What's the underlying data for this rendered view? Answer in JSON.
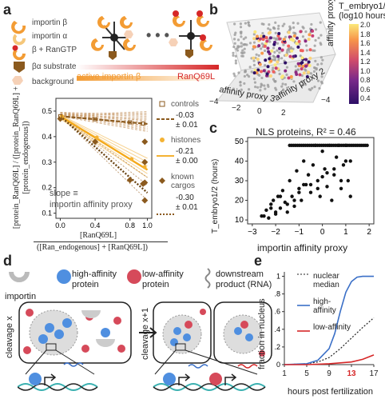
{
  "panels": {
    "a": "a",
    "b": "b",
    "c": "c",
    "d": "d",
    "e": "e"
  },
  "a": {
    "legend": [
      "importin β",
      "importin α",
      "β + RanGTP",
      "βα substrate",
      "background"
    ],
    "dots": "• • •",
    "gradient_left": "active importin β",
    "gradient_right": "RanQ69L",
    "ylabel": "[protein_RanQ69L] / ([protein_RanQ69L] + [protein_endogenous])",
    "ylabel_main": "[protein",
    "xlabel_top": "[RanQ69L]",
    "xlabel_bottom": "([Ran_endogenous] + [RanQ69L])",
    "slope_note_1": "slope ≡",
    "slope_note_2": "importin affinity proxy",
    "series_legend": [
      {
        "name": "controls",
        "slope": "-0.03",
        "err": "± 0.01"
      },
      {
        "name": "histones",
        "slope": "-0.21",
        "err": "± 0.00"
      },
      {
        "name": "known cargos",
        "slope": "-0.30",
        "err": "± 0.01"
      }
    ]
  },
  "b": {
    "colorbar_title": "T_embryo1/2",
    "colorbar_unit": "(log10 hours)",
    "colorbar_ticks": [
      "2.0",
      "1.8",
      "1.6",
      "1.4",
      "1.2",
      "1.0",
      "0.8",
      "0.6",
      "0.4"
    ],
    "axis1": "affinity proxy 1",
    "axis2": "affinity proxy 2",
    "axis3": "affinity proxy 3",
    "ticks_x": [
      "−4",
      "−2",
      "0",
      "2"
    ],
    "ticks_y": [
      "0",
      "2",
      "4"
    ]
  },
  "c": {
    "title": "NLS proteins, R² = 0.46",
    "xlabel": "importin affinity proxy",
    "ylabel": "T_embryo1/2 (hours)"
  },
  "d": {
    "legend": [
      "importin",
      "high-affinity protein",
      "low-affinity protein",
      "downstream product (RNA)"
    ],
    "left_label": "cleavage x",
    "right_label": "cleavage x+1"
  },
  "e": {
    "ylabel": "fraction in nucleus",
    "xlabel": "hours post fertilization",
    "legend": [
      "nuclear median",
      "high-affinity",
      "low-affinity"
    ],
    "highlight_tick": "13"
  },
  "colors": {
    "accent_red": "#d62728",
    "blue": "#3a6fc7",
    "orange": "#f0a020",
    "brown": "#8b5a1e"
  },
  "chart_data": [
    {
      "type": "line",
      "panel": "a",
      "x_ticks": [
        0.0,
        0.4,
        0.8,
        1.0
      ],
      "y_ticks": [
        0.1,
        0.2,
        0.3,
        0.4,
        0.5
      ],
      "xlim": [
        -0.05,
        1.05
      ],
      "ylim": [
        0.08,
        0.55
      ],
      "series": [
        {
          "name": "controls",
          "x": [
            0.0,
            1.0
          ],
          "values": [
            0.48,
            0.45
          ]
        },
        {
          "name": "histones",
          "x": [
            0.0,
            1.0
          ],
          "values": [
            0.48,
            0.27
          ]
        },
        {
          "name": "known cargos",
          "x": [
            0.0,
            1.0
          ],
          "values": [
            0.48,
            0.18
          ]
        }
      ]
    },
    {
      "type": "scatter",
      "panel": "c",
      "title": "NLS proteins, R² = 0.46",
      "xlabel": "importin affinity proxy",
      "ylabel": "T_embryo1/2 (hours)",
      "x_ticks": [
        -3,
        -2,
        -1,
        0,
        1,
        2
      ],
      "y_ticks": [
        10,
        20,
        30,
        40,
        50
      ],
      "xlim": [
        -3.2,
        2.2
      ],
      "ylim": [
        8,
        52
      ],
      "x": [
        -2.6,
        -2.4,
        -2.3,
        -2.2,
        -2.1,
        -2.0,
        -1.9,
        -1.8,
        -1.7,
        -1.6,
        -1.5,
        -1.4,
        -1.3,
        -1.2,
        -1.1,
        -1.0,
        -0.9,
        -0.8,
        -0.7,
        -0.6,
        -0.5,
        -0.4,
        -0.3,
        -0.2,
        -0.1,
        0.0,
        0.1,
        0.2,
        0.3,
        0.4,
        0.5,
        0.6,
        0.7,
        0.8,
        0.9,
        1.0,
        1.1,
        1.2,
        -2.5,
        -2.0,
        -1.5,
        -1.0,
        -0.5,
        0.0,
        0.5,
        1.0,
        -2.2,
        -1.2,
        -0.2,
        0.8,
        -1.8,
        -0.8,
        0.2,
        1.2
      ],
      "values": [
        12,
        15,
        11,
        18,
        20,
        13,
        22,
        16,
        25,
        19,
        14,
        30,
        22,
        17,
        35,
        26,
        20,
        40,
        28,
        33,
        24,
        38,
        48,
        30,
        22,
        45,
        36,
        27,
        48,
        20,
        33,
        42,
        48,
        26,
        38,
        48,
        30,
        22,
        12,
        14,
        18,
        24,
        28,
        32,
        36,
        40,
        16,
        20,
        26,
        30,
        22,
        28,
        34,
        40
      ]
    },
    {
      "type": "line",
      "panel": "e",
      "xlabel": "hours post fertilization",
      "ylabel": "fraction in nucleus",
      "x_ticks": [
        1,
        5,
        9,
        13,
        17
      ],
      "y_ticks": [
        0.0,
        0.2,
        0.4,
        0.6,
        0.8,
        1.0
      ],
      "xlim": [
        1,
        17
      ],
      "ylim": [
        0,
        1.05
      ],
      "series": [
        {
          "name": "nuclear median",
          "x": [
            1,
            5,
            7,
            9,
            11,
            13,
            15,
            17
          ],
          "values": [
            0.0,
            0.01,
            0.03,
            0.08,
            0.18,
            0.3,
            0.42,
            0.53
          ]
        },
        {
          "name": "high-affinity",
          "x": [
            1,
            5,
            7,
            9,
            10,
            11,
            12,
            13,
            14,
            15,
            17
          ],
          "values": [
            0.0,
            0.01,
            0.05,
            0.18,
            0.35,
            0.6,
            0.82,
            0.94,
            0.99,
            1.0,
            1.0
          ]
        },
        {
          "name": "low-affinity",
          "x": [
            1,
            5,
            9,
            13,
            15,
            17
          ],
          "values": [
            0.0,
            0.0,
            0.01,
            0.03,
            0.06,
            0.11
          ]
        }
      ]
    }
  ]
}
